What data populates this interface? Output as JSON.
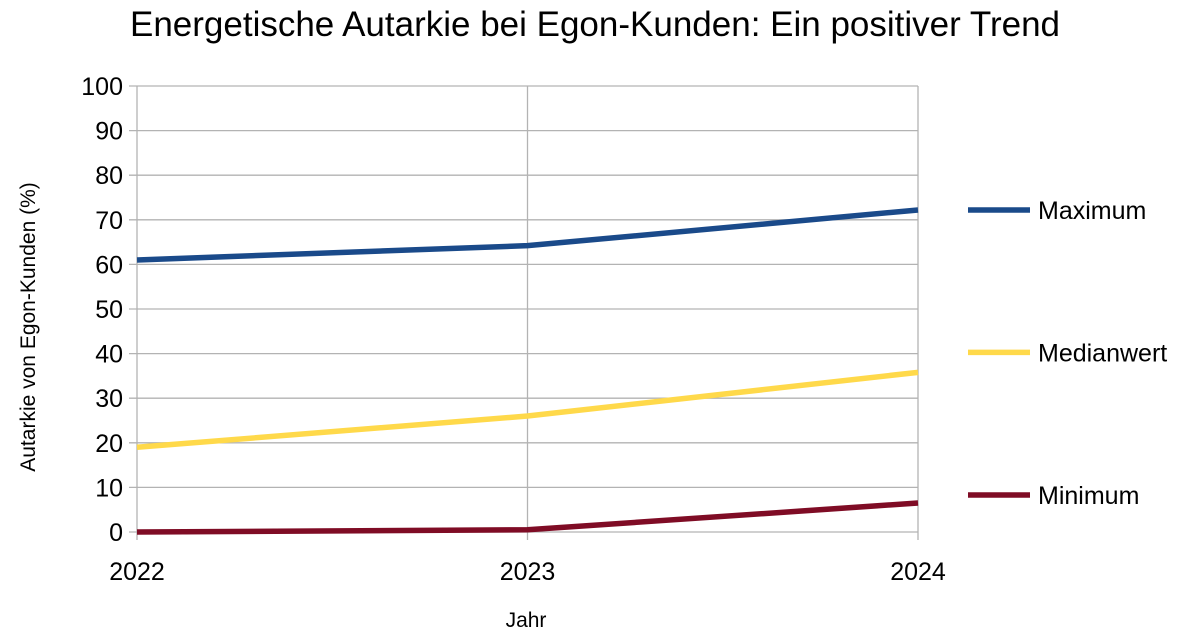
{
  "chart_data": {
    "type": "line",
    "title": "Energetische Autarkie bei Egon-Kunden: Ein positiver Trend",
    "xlabel": "Jahr",
    "ylabel": "Autarkie von Egon-Kunden (%)",
    "categories": [
      "2022",
      "2023",
      "2024"
    ],
    "ylim": [
      0,
      100
    ],
    "yticks": [
      0,
      10,
      20,
      30,
      40,
      50,
      60,
      70,
      80,
      90,
      100
    ],
    "grid": true,
    "legend_position": "right",
    "series": [
      {
        "name": "Maximum",
        "values": [
          61,
          64.2,
          72.2
        ],
        "color": "#1a4a8a"
      },
      {
        "name": "Medianwert",
        "values": [
          19,
          26,
          35.8
        ],
        "color": "#ffd94a"
      },
      {
        "name": "Minimum",
        "values": [
          0,
          0.5,
          6.5
        ],
        "color": "#7f0c25"
      }
    ]
  }
}
